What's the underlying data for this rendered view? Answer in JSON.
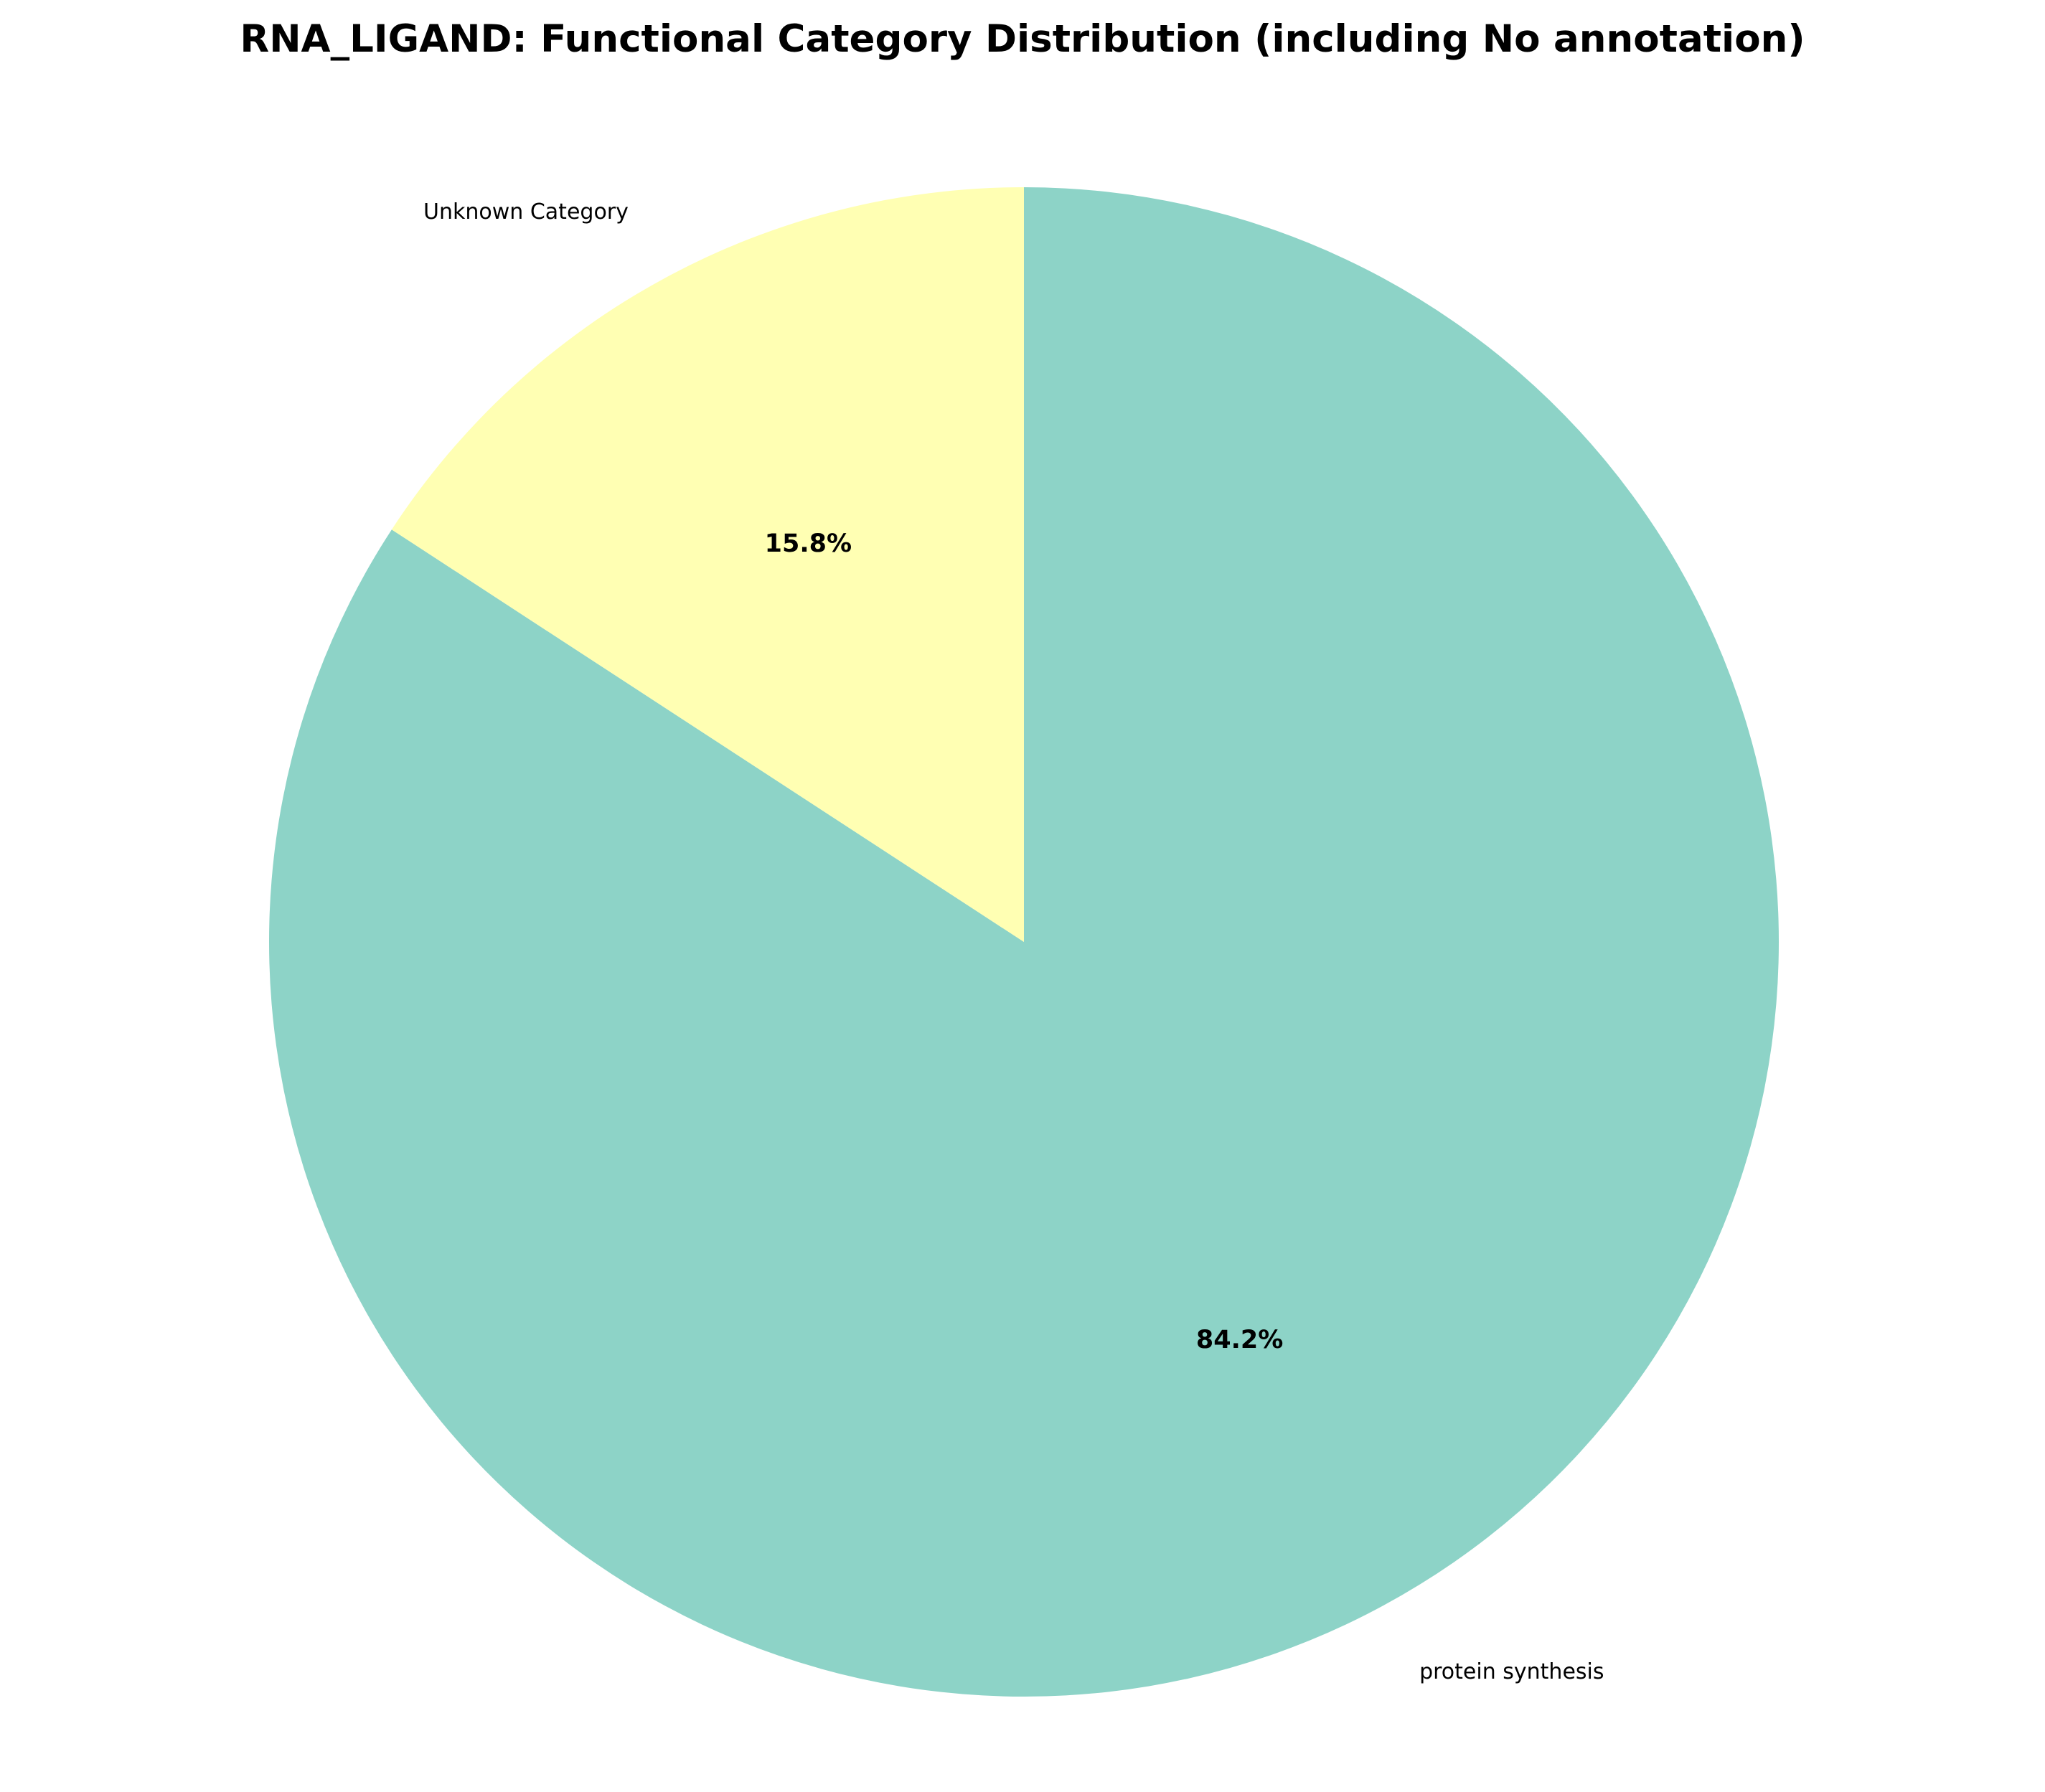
{
  "chart_data": {
    "type": "pie",
    "title": "RNA_LIGAND: Functional Category Distribution (including No annotation)",
    "slices": [
      {
        "label": "protein synthesis",
        "value": 84.2,
        "pct_label": "84.2%",
        "color": "#8dd3c7"
      },
      {
        "label": "Unknown Category",
        "value": 15.8,
        "pct_label": "15.8%",
        "color": "#ffffb3"
      }
    ],
    "start_angle": 90,
    "direction": "clockwise",
    "legend": "none"
  }
}
